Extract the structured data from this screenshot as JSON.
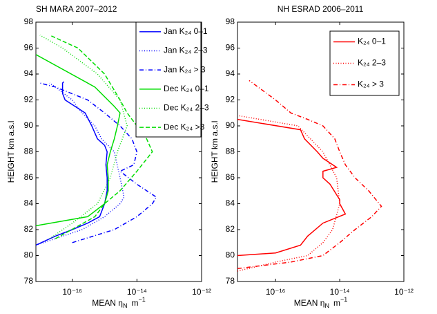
{
  "chart_data": [
    {
      "type": "line",
      "title": "SH MARA 2007–2012",
      "xlabel": [
        "MEAN η",
        "N",
        "m",
        "−1"
      ],
      "ylabel": "HEIGHT  km a.s.l",
      "xscale": "log",
      "xlim": [
        7.5e-18,
        1e-12
      ],
      "xticks": [
        {
          "value": 1e-16,
          "label": "10⁻¹⁶"
        },
        {
          "value": 1e-14,
          "label": "10⁻¹⁴"
        },
        {
          "value": 1e-12,
          "label": "10⁻¹²"
        }
      ],
      "ylim": [
        78,
        98
      ],
      "yticks": [
        78,
        80,
        82,
        84,
        86,
        88,
        90,
        92,
        94,
        96,
        98
      ],
      "legend": "upper right",
      "series": [
        {
          "name": "Jan K₂₄ 0–1",
          "color": "#0000ff",
          "dash": "solid",
          "x": [
            7.5e-18,
            3e-17,
            1e-16,
            3e-16,
            7e-16,
            1e-15,
            1.2e-15,
            1.2e-15,
            1.1e-15,
            1.2e-15,
            1e-15,
            6e-16,
            4e-16,
            2.5e-16,
            6e-17,
            5e-17,
            5e-17,
            5.5e-17
          ],
          "values": [
            80.8,
            81.5,
            82,
            82.5,
            83,
            84,
            85,
            86,
            87,
            88,
            88.5,
            89,
            90,
            91,
            92,
            92.5,
            93.3,
            93.4
          ]
        },
        {
          "name": "Jan K₂₄ 2–3",
          "color": "#0000ff",
          "dash": "dotted",
          "x": [
            7.5e-18,
            2e-16,
            1e-15,
            3e-15,
            4e-15,
            3e-15,
            2e-15,
            8e-16,
            5e-16,
            2e-16,
            1e-16,
            3e-17,
            2e-17
          ],
          "values": [
            80.8,
            82,
            83,
            84,
            84.5,
            86,
            88,
            89,
            90,
            91,
            92,
            93,
            93.3
          ]
        },
        {
          "name": "Jan K₂₄ > 3",
          "color": "#0000ff",
          "dash": "dashdot",
          "x": [
            1e-16,
            2e-15,
            1e-14,
            3e-14,
            4e-14,
            1e-14,
            3e-15,
            8e-15,
            1e-14,
            7e-15,
            3e-15,
            1e-15,
            3e-16,
            3e-17,
            1e-17
          ],
          "values": [
            81,
            82,
            83,
            84,
            84.5,
            85.5,
            86.5,
            87,
            88,
            89,
            90,
            91,
            92,
            93,
            93.3
          ]
        },
        {
          "name": "Dec K₂₄ 0–1",
          "color": "#00dd00",
          "dash": "solid",
          "x": [
            7.5e-18,
            3e-16,
            1e-15,
            1.3e-15,
            1.3e-15,
            1.2e-15,
            1.5e-15,
            2e-15,
            2.5e-15,
            3e-15,
            2e-15,
            5e-16,
            7.5e-18
          ],
          "values": [
            82.3,
            83,
            84,
            85,
            86,
            87,
            88,
            89,
            90,
            91,
            91.5,
            93,
            95.5
          ]
        },
        {
          "name": "Dec K₂₄ 2–3",
          "color": "#00dd00",
          "dash": "dotted",
          "x": [
            2e-17,
            1e-16,
            6e-16,
            1.5e-15,
            2.5e-15,
            5e-15,
            3e-15,
            6e-16,
            5e-17,
            1e-17
          ],
          "values": [
            81.3,
            82.5,
            84,
            86,
            88,
            90,
            92,
            94,
            96,
            97
          ]
        },
        {
          "name": "Dec K₂₄ >3",
          "color": "#00dd00",
          "dash": "dashed",
          "x": [
            3e-17,
            5e-16,
            1e-15,
            3e-15,
            1e-14,
            3e-14,
            2e-14,
            1e-14,
            5e-15,
            3e-15,
            1e-15,
            1.5e-16,
            2e-17
          ],
          "values": [
            81.3,
            83,
            84,
            85,
            86.5,
            88,
            89,
            90,
            91,
            92,
            94,
            96,
            97
          ]
        }
      ]
    },
    {
      "type": "line",
      "title": "NH ESRAD 2006–2011",
      "xlabel": [
        "MEAN η",
        "N",
        "m",
        "−1"
      ],
      "ylabel": "HEIGHT  km a.s.l",
      "xscale": "log",
      "xlim": [
        6.5e-18,
        1e-12
      ],
      "xticks": [
        {
          "value": 1e-16,
          "label": "10⁻¹⁶"
        },
        {
          "value": 1e-14,
          "label": "10⁻¹⁴"
        },
        {
          "value": 1e-12,
          "label": "10⁻¹²"
        }
      ],
      "ylim": [
        78,
        98
      ],
      "yticks": [
        78,
        80,
        82,
        84,
        86,
        88,
        90,
        92,
        94,
        96,
        98
      ],
      "legend": "upper right",
      "series": [
        {
          "name": "K₂₄ 0–1",
          "color": "#ff0000",
          "dash": "solid",
          "x": [
            6.5e-18,
            1e-16,
            6e-16,
            1e-15,
            3e-15,
            1.5e-14,
            1e-14,
            1e-14,
            5e-15,
            3e-15,
            3e-15,
            8e-15,
            3e-15,
            2e-15,
            8e-16,
            6e-16,
            6.5e-18
          ],
          "values": [
            80,
            80.2,
            80.8,
            81.5,
            82.5,
            83.2,
            84,
            84.3,
            85.5,
            86,
            86.5,
            86.8,
            87.5,
            88,
            89,
            89.7,
            90.5
          ]
        },
        {
          "name": "K₂₄ 2–3",
          "color": "#ff0000",
          "dash": "dotted",
          "x": [
            6.5e-18,
            1e-16,
            1e-15,
            3e-15,
            6e-15,
            1e-14,
            8e-15,
            3e-15,
            5e-16,
            6.5e-18
          ],
          "values": [
            78.8,
            79.5,
            80,
            81,
            82,
            84,
            86,
            88,
            90,
            90.8
          ]
        },
        {
          "name": "K₂₄ > 3",
          "color": "#ff0000",
          "dash": "dashdot",
          "x": [
            6.5e-18,
            3e-16,
            3e-15,
            1e-14,
            3e-14,
            1e-13,
            2e-13,
            8e-14,
            3e-14,
            1.5e-14,
            1e-14,
            7e-15,
            3e-15,
            1e-15,
            3e-16,
            1e-16,
            1.5e-17
          ],
          "values": [
            79,
            79.5,
            80,
            81,
            82,
            83,
            83.8,
            85,
            86,
            87,
            88,
            89,
            90,
            90.5,
            91,
            92,
            93.5
          ]
        }
      ]
    }
  ]
}
